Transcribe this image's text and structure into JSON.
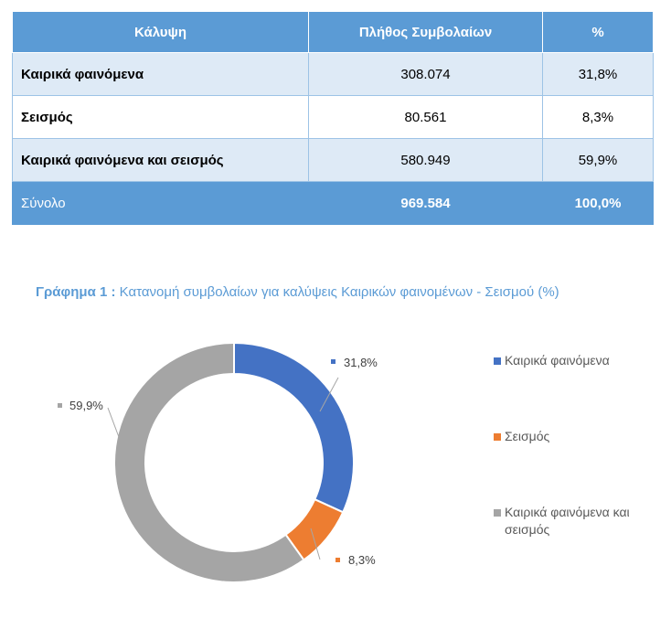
{
  "table": {
    "headers": [
      "Κάλυψη",
      "Πλήθος Συμβολαίων",
      "%"
    ],
    "rows": [
      {
        "name": "Καιρικά φαινόμενα",
        "count": "308.074",
        "pct": "31,8%"
      },
      {
        "name": "Σεισμός",
        "count": "80.561",
        "pct": "8,3%"
      },
      {
        "name": "Καιρικά φαινόμενα και σεισμός",
        "count": "580.949",
        "pct": "59,9%"
      }
    ],
    "total": {
      "name": "Σύνολο",
      "count": "969.584",
      "pct": "100,0%"
    }
  },
  "chart_title": {
    "lead": "Γράφημα 1 :",
    "text": " Κατανομή συμβολαίων για καλύψεις Καιρικών φαινομένων - Σεισμού (%)"
  },
  "chart_data": {
    "type": "pie",
    "donut": true,
    "title": "Γράφημα 1 : Κατανομή συμβολαίων για καλύψεις Καιρικών φαινομένων - Σεισμού (%)",
    "categories": [
      "Καιρικά φαινόμενα",
      "Σεισμός",
      "Καιρικά φαινόμενα και σεισμός"
    ],
    "values": [
      31.8,
      8.3,
      59.9
    ],
    "data_labels": [
      "31,8%",
      "8,3%",
      "59,9%"
    ],
    "colors": [
      "#4472C4",
      "#ED7D31",
      "#A5A5A5"
    ],
    "legend_position": "right"
  },
  "colors": {
    "header": "#5B9BD5",
    "band": "#DEEAF6",
    "title": "#5B9BD5",
    "legend_text": "#595959"
  }
}
